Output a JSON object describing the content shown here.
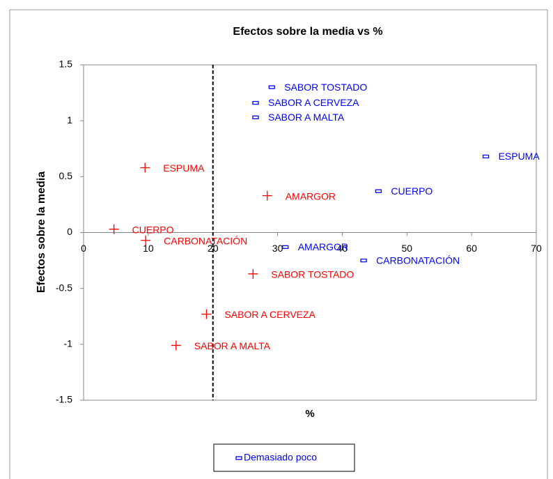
{
  "chart_data": {
    "type": "scatter",
    "title": "Efectos sobre la media vs %",
    "x_label": "%",
    "y_label": "Efectos sobre la media",
    "xlim": [
      0,
      70
    ],
    "ylim": [
      -1.5,
      1.5
    ],
    "xticks": [
      0,
      10,
      20,
      30,
      40,
      50,
      60,
      70
    ],
    "yticks": [
      -1.5,
      -1,
      -0.5,
      0,
      0.5,
      1,
      1.5
    ],
    "vline": 20,
    "legend": "bottom",
    "grid": false,
    "series": [
      {
        "color": "#ff0000",
        "marker": "plus",
        "point_labels": [
          "ESPUMA",
          "AMARGOR",
          "CUERPO",
          "CARBONATACIÓN",
          "SABOR TOSTADO",
          "SABOR A CERVEZA",
          "SABOR A MALTA"
        ],
        "x": [
          9.5,
          28.4,
          4.7,
          9.6,
          26.2,
          19.0,
          14.3
        ],
        "values": [
          0.58,
          0.33,
          0.03,
          -0.07,
          -0.37,
          -0.73,
          -1.01
        ]
      },
      {
        "name": "Demasiado poco",
        "color": "#0000ff",
        "marker": "rect",
        "point_labels": [
          "SABOR TOSTADO",
          "SABOR A CERVEZA",
          "SABOR A MALTA",
          "ESPUMA",
          "CUERPO",
          "AMARGOR",
          "CARBONATACIÓN"
        ],
        "x": [
          29.1,
          26.6,
          26.6,
          62.2,
          45.6,
          31.2,
          43.3
        ],
        "values": [
          1.3,
          1.16,
          1.03,
          0.68,
          0.37,
          -0.13,
          -0.25
        ]
      }
    ]
  }
}
